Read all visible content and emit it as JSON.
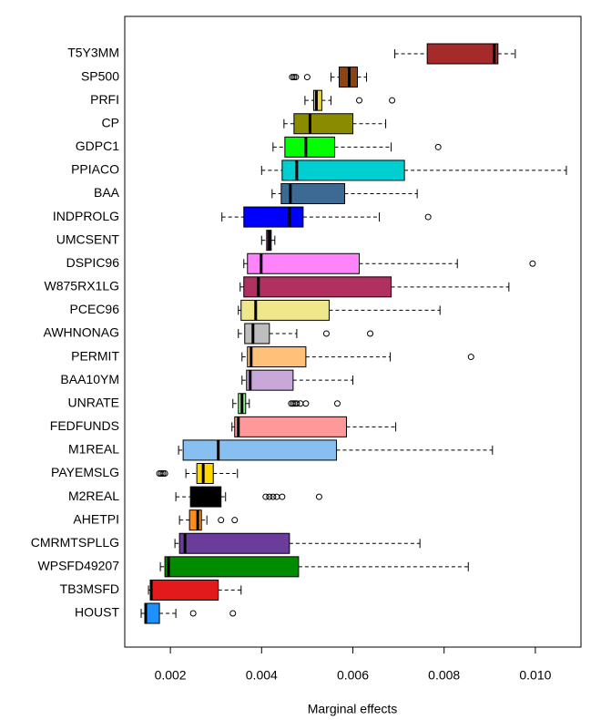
{
  "chart_data": {
    "type": "boxplot",
    "xlabel": "Marginal effects",
    "xlim": [
      0.001,
      0.011
    ],
    "xticks": [
      0.002,
      0.004,
      0.006,
      0.008,
      {
        "value": 0.01,
        "label": "0.010"
      }
    ],
    "categories": [
      "T5Y3MM",
      "SP500",
      "PRFI",
      "CP",
      "GDPC1",
      "PPIACO",
      "BAA",
      "INDPROLG",
      "UMCSENT",
      "DSPIC96",
      "W875RX1LG",
      "PCEC96",
      "AWHNONAG",
      "PERMIT",
      "BAA10YM",
      "UNRATE",
      "FEDFUNDS",
      "M1REAL",
      "PAYEMSLG",
      "M2REAL",
      "AHETPI",
      "CMRMTSPLLG",
      "WPSFD49207",
      "TB3MSFD",
      "HOUST"
    ],
    "boxes": [
      {
        "whisker_low": 0.00692,
        "q1": 0.00763,
        "median": 0.0091,
        "q3": 0.00918,
        "whisker_high": 0.00956,
        "outliers": [],
        "color": "#A52A2A"
      },
      {
        "whisker_low": 0.00552,
        "q1": 0.0057,
        "median": 0.00592,
        "q3": 0.0061,
        "whisker_high": 0.0063,
        "outliers": [
          0.00467,
          0.00471,
          0.00475,
          0.005
        ],
        "color": "#8B4513"
      },
      {
        "whisker_low": 0.00495,
        "q1": 0.00514,
        "median": 0.0052,
        "q3": 0.00532,
        "whisker_high": 0.00552,
        "outliers": [
          0.00614,
          0.00686
        ],
        "color": "#EED43A"
      },
      {
        "whisker_low": 0.00449,
        "q1": 0.00471,
        "median": 0.00506,
        "q3": 0.006,
        "whisker_high": 0.00672,
        "outliers": [],
        "color": "#8B8B00"
      },
      {
        "whisker_low": 0.00425,
        "q1": 0.00451,
        "median": 0.00497,
        "q3": 0.0056,
        "whisker_high": 0.00684,
        "outliers": [
          0.00787
        ],
        "color": "#00FF00"
      },
      {
        "whisker_low": 0.004,
        "q1": 0.00445,
        "median": 0.00477,
        "q3": 0.00713,
        "whisker_high": 0.01068,
        "outliers": [],
        "color": "#00CED1"
      },
      {
        "whisker_low": 0.00423,
        "q1": 0.00443,
        "median": 0.00463,
        "q3": 0.00582,
        "whisker_high": 0.00741,
        "outliers": [],
        "color": "#3D6A93"
      },
      {
        "whisker_low": 0.00313,
        "q1": 0.00361,
        "median": 0.00461,
        "q3": 0.00491,
        "whisker_high": 0.00658,
        "outliers": [
          0.00765
        ],
        "color": "#0000FF"
      },
      {
        "whisker_low": 0.004,
        "q1": 0.00411,
        "median": 0.00417,
        "q3": 0.00421,
        "whisker_high": 0.00429,
        "outliers": [],
        "color": "#8B1C62"
      },
      {
        "whisker_low": 0.00361,
        "q1": 0.00369,
        "median": 0.00399,
        "q3": 0.00614,
        "whisker_high": 0.00829,
        "outliers": [
          0.00994
        ],
        "color": "#FF83FA"
      },
      {
        "whisker_low": 0.00353,
        "q1": 0.00361,
        "median": 0.00393,
        "q3": 0.00684,
        "whisker_high": 0.00942,
        "outliers": [],
        "color": "#B03060"
      },
      {
        "whisker_low": 0.00349,
        "q1": 0.00355,
        "median": 0.00387,
        "q3": 0.00548,
        "whisker_high": 0.00791,
        "outliers": [],
        "color": "#F0E68C"
      },
      {
        "whisker_low": 0.00349,
        "q1": 0.00363,
        "median": 0.00381,
        "q3": 0.00417,
        "whisker_high": 0.00477,
        "outliers": [
          0.00542,
          0.00638
        ],
        "color": "#BEBEBE"
      },
      {
        "whisker_low": 0.00357,
        "q1": 0.00369,
        "median": 0.00377,
        "q3": 0.00497,
        "whisker_high": 0.00682,
        "outliers": [
          0.00859
        ],
        "color": "#FFC07A"
      },
      {
        "whisker_low": 0.00357,
        "q1": 0.00367,
        "median": 0.00375,
        "q3": 0.00469,
        "whisker_high": 0.006,
        "outliers": [],
        "color": "#C8A8D8"
      },
      {
        "whisker_low": 0.00337,
        "q1": 0.00349,
        "median": 0.00357,
        "q3": 0.00365,
        "whisker_high": 0.00373,
        "outliers": [
          0.00465,
          0.00469,
          0.00473,
          0.00477,
          0.00485,
          0.00497,
          0.00566
        ],
        "color": "#90EE90"
      },
      {
        "whisker_low": 0.00335,
        "q1": 0.00341,
        "median": 0.00349,
        "q3": 0.00586,
        "whisker_high": 0.00694,
        "outliers": [],
        "color": "#FF9999"
      },
      {
        "whisker_low": 0.00218,
        "q1": 0.00228,
        "median": 0.00305,
        "q3": 0.00564,
        "whisker_high": 0.00906,
        "outliers": [],
        "color": "#87C0F0"
      },
      {
        "whisker_low": 0.00234,
        "q1": 0.00258,
        "median": 0.00272,
        "q3": 0.00294,
        "whisker_high": 0.00347,
        "outliers": [
          0.00176,
          0.0018,
          0.00184,
          0.00188
        ],
        "color": "#FFD700"
      },
      {
        "whisker_low": 0.00212,
        "q1": 0.00244,
        "median": 0.00305,
        "q3": 0.00311,
        "whisker_high": 0.00321,
        "outliers": [
          0.00409,
          0.00417,
          0.00425,
          0.00433,
          0.00445,
          0.00526
        ],
        "color": "#000000"
      },
      {
        "whisker_low": 0.0022,
        "q1": 0.00242,
        "median": 0.0026,
        "q3": 0.00268,
        "whisker_high": 0.0028,
        "outliers": [
          0.00311,
          0.00341
        ],
        "color": "#FF8C1A"
      },
      {
        "whisker_low": 0.0021,
        "q1": 0.0022,
        "median": 0.00232,
        "q3": 0.00461,
        "whisker_high": 0.00747,
        "outliers": [],
        "color": "#6A3D9A"
      },
      {
        "whisker_low": 0.00178,
        "q1": 0.00188,
        "median": 0.00196,
        "q3": 0.00481,
        "whisker_high": 0.00853,
        "outliers": [],
        "color": "#008B00"
      },
      {
        "whisker_low": 0.00152,
        "q1": 0.00156,
        "median": 0.00158,
        "q3": 0.00305,
        "whisker_high": 0.00355,
        "outliers": [],
        "color": "#E31A1C"
      },
      {
        "whisker_low": 0.00136,
        "q1": 0.00144,
        "median": 0.00146,
        "q3": 0.00176,
        "whisker_high": 0.00212,
        "outliers": [
          0.0025,
          0.00337
        ],
        "color": "#1E90FF"
      }
    ]
  }
}
